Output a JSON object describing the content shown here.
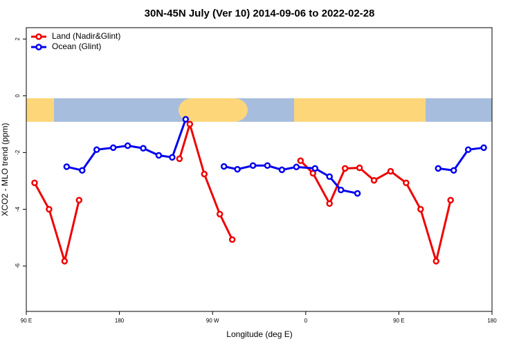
{
  "chart_data": {
    "type": "line",
    "title": "30N-45N July (Ver 10)   2014-09-06 to 2022-02-28",
    "x_label": "Longitude (deg E)",
    "y_label": "XCO2 - MLO trend (ppm)",
    "xlim": [
      90,
      540
    ],
    "xticks": [
      {
        "value": 90,
        "label": "90 E"
      },
      180,
      {
        "value": 270,
        "label": "90 W"
      },
      {
        "value": 360,
        "label": "0"
      },
      {
        "value": 450,
        "label": "90 E"
      },
      {
        "value": 540,
        "label": "180"
      }
    ],
    "ylim": [
      -7.6,
      2.4
    ],
    "yticks": [
      2,
      0,
      -2,
      -4,
      -6
    ],
    "legend": "top-left",
    "series": [
      {
        "name": "Land (Nadir&Glint)",
        "color": "#ee0000",
        "x": [
          98,
          112,
          127,
          141,
          null,
          238,
          248,
          262,
          277,
          289,
          null,
          355,
          367,
          383,
          398,
          412,
          426,
          442,
          457,
          471,
          486,
          500
        ],
        "values": [
          -3.07,
          -4.0,
          -5.83,
          -3.68,
          null,
          -2.22,
          -1.0,
          -2.76,
          -4.17,
          -5.07,
          null,
          -2.29,
          -2.73,
          -3.8,
          -2.56,
          -2.54,
          -2.98,
          -2.66,
          -3.07,
          -4.0,
          -5.83,
          -3.68
        ]
      },
      {
        "name": "Ocean (Glint)",
        "color": "#0000ee",
        "x": [
          129,
          144,
          158,
          174,
          188,
          203,
          218,
          231,
          244,
          null,
          281,
          294,
          309,
          323,
          337,
          351,
          369,
          383,
          394,
          410,
          null,
          488,
          503,
          517,
          532
        ],
        "values": [
          -2.5,
          -2.63,
          -1.9,
          -1.83,
          -1.76,
          -1.85,
          -2.1,
          -2.17,
          -0.83,
          null,
          -2.49,
          -2.59,
          -2.46,
          -2.46,
          -2.61,
          -2.51,
          -2.56,
          -2.85,
          -3.32,
          -3.44,
          null,
          -2.56,
          -2.63,
          -1.9,
          -1.83
        ]
      }
    ]
  }
}
